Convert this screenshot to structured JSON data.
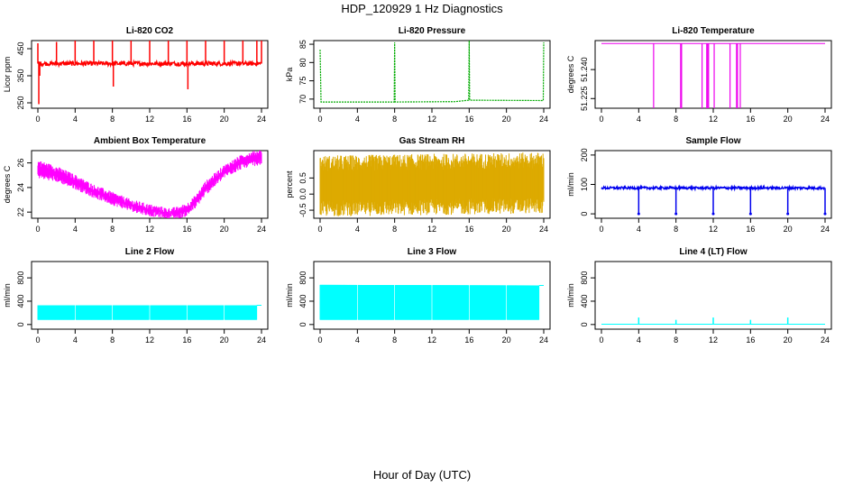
{
  "figure": {
    "title": "HDP_120929  1 Hz Diagnostics",
    "xlabel": "Hour of Day (UTC)"
  },
  "chart_data": [
    {
      "type": "line",
      "title": "Li-820 CO2",
      "ylabel": "Licor ppm",
      "color": "#ff0000",
      "xlim": [
        0,
        24
      ],
      "ylim": [
        230,
        480
      ],
      "xticks": [
        0,
        4,
        8,
        12,
        16,
        20,
        24
      ],
      "yticks": [
        250,
        350,
        450
      ],
      "series": [
        {
          "base": {
            "x": [
              0,
              24
            ],
            "y": [
              395,
              395
            ],
            "noise": 8
          },
          "spikes": [
            {
              "x": 0,
              "y": 470
            },
            {
              "x": 0.1,
              "y": 245
            },
            {
              "x": 0.2,
              "y": 350
            },
            {
              "x": 2,
              "y": 475
            },
            {
              "x": 4,
              "y": 480
            },
            {
              "x": 6,
              "y": 480
            },
            {
              "x": 8,
              "y": 480
            },
            {
              "x": 8.1,
              "y": 310
            },
            {
              "x": 10,
              "y": 480
            },
            {
              "x": 12,
              "y": 480
            },
            {
              "x": 14,
              "y": 480
            },
            {
              "x": 16,
              "y": 480
            },
            {
              "x": 16.1,
              "y": 300
            },
            {
              "x": 18,
              "y": 480
            },
            {
              "x": 20,
              "y": 480
            },
            {
              "x": 22,
              "y": 480
            },
            {
              "x": 23.5,
              "y": 480
            },
            {
              "x": 24,
              "y": 480
            }
          ]
        }
      ]
    },
    {
      "type": "line",
      "title": "Li-820 Pressure",
      "ylabel": "kPa",
      "color": "#00aa00",
      "xlim": [
        0,
        24
      ],
      "ylim": [
        67.5,
        86
      ],
      "xticks": [
        0,
        4,
        8,
        12,
        16,
        20,
        24
      ],
      "yticks": [
        70,
        75,
        80,
        85
      ],
      "series": [
        {
          "points": [
            {
              "x": 0,
              "y": 83.5
            },
            {
              "x": 0.1,
              "y": 69.2
            },
            {
              "x": 7.95,
              "y": 69.2
            },
            {
              "x": 8,
              "y": 85.5
            },
            {
              "x": 8.05,
              "y": 69.2
            },
            {
              "x": 14.5,
              "y": 69.3
            },
            {
              "x": 15.95,
              "y": 69.7
            },
            {
              "x": 16,
              "y": 86
            },
            {
              "x": 16.05,
              "y": 69.7
            },
            {
              "x": 23.95,
              "y": 69.6
            },
            {
              "x": 24,
              "y": 85.5
            }
          ]
        }
      ]
    },
    {
      "type": "line",
      "title": "Li-820 Temperature",
      "ylabel": "degrees C",
      "color": "#ee00ee",
      "xlim": [
        0,
        24
      ],
      "ylim": [
        51.22,
        51.255
      ],
      "xticks": [
        0,
        4,
        8,
        12,
        16,
        20,
        24
      ],
      "yticks": [
        51.225,
        51.24
      ],
      "ytick_labels": [
        "51.225",
        "51.240"
      ],
      "series": [
        {
          "base": {
            "y": 51.2535
          },
          "drops": [
            5.6,
            8.5,
            8.6,
            10.8,
            11.3,
            11.4,
            11.5,
            12.1,
            13.8,
            14.5,
            14.6,
            14.9
          ]
        }
      ]
    },
    {
      "type": "area",
      "title": "Ambient Box Temperature",
      "ylabel": "degrees C",
      "color": "#ff00ff",
      "xlim": [
        0,
        24
      ],
      "ylim": [
        21.5,
        27
      ],
      "xticks": [
        0,
        4,
        8,
        12,
        16,
        20,
        24
      ],
      "yticks": [
        22,
        24,
        26
      ],
      "series": [
        {
          "x": [
            0,
            2,
            4,
            6,
            8,
            10,
            12,
            14,
            15,
            16,
            17,
            18,
            20,
            22,
            24
          ],
          "upper": [
            26.0,
            25.5,
            24.8,
            24.0,
            23.4,
            22.8,
            22.4,
            22.1,
            22.2,
            22.5,
            23.2,
            24.3,
            25.6,
            26.5,
            26.9
          ],
          "lower": [
            25.0,
            24.7,
            24.1,
            23.4,
            22.8,
            22.3,
            21.9,
            21.7,
            21.7,
            21.9,
            22.6,
            23.6,
            25.0,
            25.8,
            26.1
          ]
        }
      ]
    },
    {
      "type": "area",
      "title": "Gas Stream RH",
      "ylabel": "percent",
      "color": "#ddaa00",
      "xlim": [
        0,
        24
      ],
      "ylim": [
        -0.75,
        1.35
      ],
      "xticks": [
        0,
        4,
        8,
        12,
        16,
        20,
        24
      ],
      "yticks": [
        -0.5,
        0,
        0.5
      ],
      "ytick_labels": [
        "-0.5",
        "0.0",
        "0.5"
      ],
      "series": [
        {
          "x": [
            0,
            24
          ],
          "upper": [
            0.95,
            1.05
          ],
          "lower": [
            -0.45,
            -0.35
          ],
          "noise": 0.25
        }
      ]
    },
    {
      "type": "line",
      "title": "Sample Flow",
      "ylabel": "ml/min",
      "color": "#0000ee",
      "xlim": [
        0,
        24
      ],
      "ylim": [
        -15,
        215
      ],
      "xticks": [
        0,
        4,
        8,
        12,
        16,
        20,
        24
      ],
      "yticks": [
        0,
        100,
        200
      ],
      "series": [
        {
          "base": {
            "y": 88,
            "noise": 4
          },
          "dips": [
            {
              "x": 4,
              "y": 0
            },
            {
              "x": 8,
              "y": 0
            },
            {
              "x": 12,
              "y": 0
            },
            {
              "x": 16,
              "y": 0
            },
            {
              "x": 20,
              "y": 0
            },
            {
              "x": 24,
              "y": 0
            }
          ]
        }
      ]
    },
    {
      "type": "area",
      "title": "Line 2 Flow",
      "ylabel": "ml/min",
      "color": "#00ffff",
      "xlim": [
        0,
        24
      ],
      "ylim": [
        -80,
        1080
      ],
      "xticks": [
        0,
        4,
        8,
        12,
        16,
        20,
        24
      ],
      "yticks": [
        0,
        400,
        800
      ],
      "series": [
        {
          "x": [
            0,
            24
          ],
          "upper": [
            330,
            330
          ],
          "lower": [
            80,
            80
          ],
          "gaps": [
            4,
            8,
            12,
            16,
            20
          ],
          "end": 23.5
        }
      ]
    },
    {
      "type": "area",
      "title": "Line 3 Flow",
      "ylabel": "ml/min",
      "color": "#00ffff",
      "xlim": [
        0,
        24
      ],
      "ylim": [
        -80,
        1080
      ],
      "xticks": [
        0,
        4,
        8,
        12,
        16,
        20,
        24
      ],
      "yticks": [
        0,
        400,
        800
      ],
      "series": [
        {
          "x": [
            0,
            24
          ],
          "upper": [
            680,
            670
          ],
          "lower": [
            80,
            80
          ],
          "gaps": [
            4,
            8,
            12,
            16,
            20
          ],
          "end": 23.5
        }
      ]
    },
    {
      "type": "line",
      "title": "Line 4 (LT) Flow",
      "ylabel": "ml/min",
      "color": "#00ffff",
      "xlim": [
        0,
        24
      ],
      "ylim": [
        -80,
        1080
      ],
      "xticks": [
        0,
        4,
        8,
        12,
        16,
        20,
        24
      ],
      "yticks": [
        0,
        400,
        800
      ],
      "series": [
        {
          "base": {
            "y": 5
          },
          "spikes": [
            {
              "x": 4,
              "y": 120
            },
            {
              "x": 8,
              "y": 80
            },
            {
              "x": 12,
              "y": 120
            },
            {
              "x": 16,
              "y": 80
            },
            {
              "x": 20,
              "y": 120
            }
          ]
        }
      ]
    }
  ]
}
